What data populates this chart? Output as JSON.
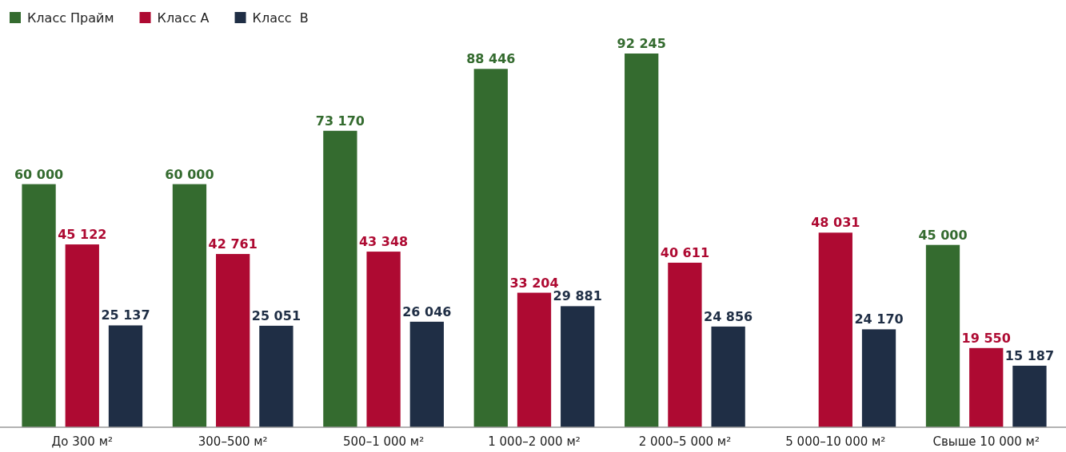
{
  "chart_data": {
    "type": "bar",
    "categories": [
      "До 300 м²",
      "300–500 м²",
      "500–1 000 м²",
      "1 000–2 000 м²",
      "2 000–5 000 м²",
      "5 000–10 000 м²",
      "Свыше 10 000 м²"
    ],
    "series": [
      {
        "name": "Класс Прайм",
        "color": "#346b2f",
        "values": [
          60000,
          60000,
          73170,
          88446,
          92245,
          null,
          45000
        ]
      },
      {
        "name": "Класс А",
        "color": "#ae0a32",
        "values": [
          45122,
          42761,
          43348,
          33204,
          40611,
          48031,
          19550
        ]
      },
      {
        "name": "Класс  В",
        "color": "#1f2e45",
        "values": [
          25137,
          25051,
          26046,
          29881,
          24856,
          24170,
          15187
        ]
      }
    ],
    "data_labels": true,
    "legend": "top left"
  }
}
